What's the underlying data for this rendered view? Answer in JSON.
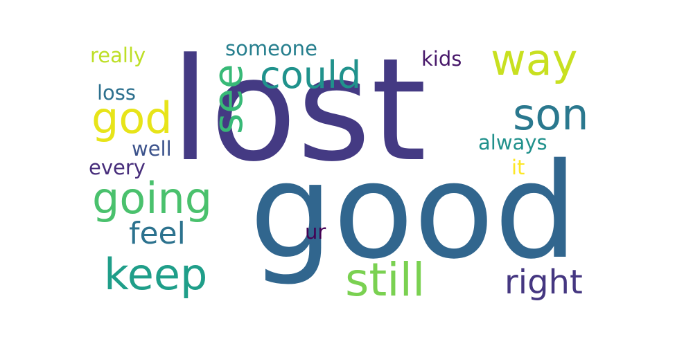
{
  "words": {
    "lost": {
      "text": "lost",
      "color": "#443a83"
    },
    "good": {
      "text": "good",
      "color": "#31668e"
    },
    "could": {
      "text": "could",
      "color": "#20928c"
    },
    "way": {
      "text": "way",
      "color": "#c8e020"
    },
    "son": {
      "text": "son",
      "color": "#2a788e"
    },
    "god": {
      "text": "god",
      "color": "#e7e419"
    },
    "see": {
      "text": "see",
      "color": "#38b977"
    },
    "going": {
      "text": "going",
      "color": "#4ac16d"
    },
    "keep": {
      "text": "keep",
      "color": "#1f9e89"
    },
    "still": {
      "text": "still",
      "color": "#7ad151"
    },
    "right": {
      "text": "right",
      "color": "#453781"
    },
    "feel": {
      "text": "feel",
      "color": "#2c728e"
    },
    "someone": {
      "text": "someone",
      "color": "#277f8e"
    },
    "really": {
      "text": "really",
      "color": "#bddf26"
    },
    "kids": {
      "text": "kids",
      "color": "#48186a"
    },
    "loss": {
      "text": "loss",
      "color": "#2d708e"
    },
    "well": {
      "text": "well",
      "color": "#3b528b"
    },
    "every": {
      "text": "every",
      "color": "#472d7b"
    },
    "always": {
      "text": "always",
      "color": "#21918c"
    },
    "it": {
      "text": "it",
      "color": "#fde725"
    },
    "ur": {
      "text": "ur",
      "color": "#440154"
    }
  },
  "background": "#ffffff"
}
